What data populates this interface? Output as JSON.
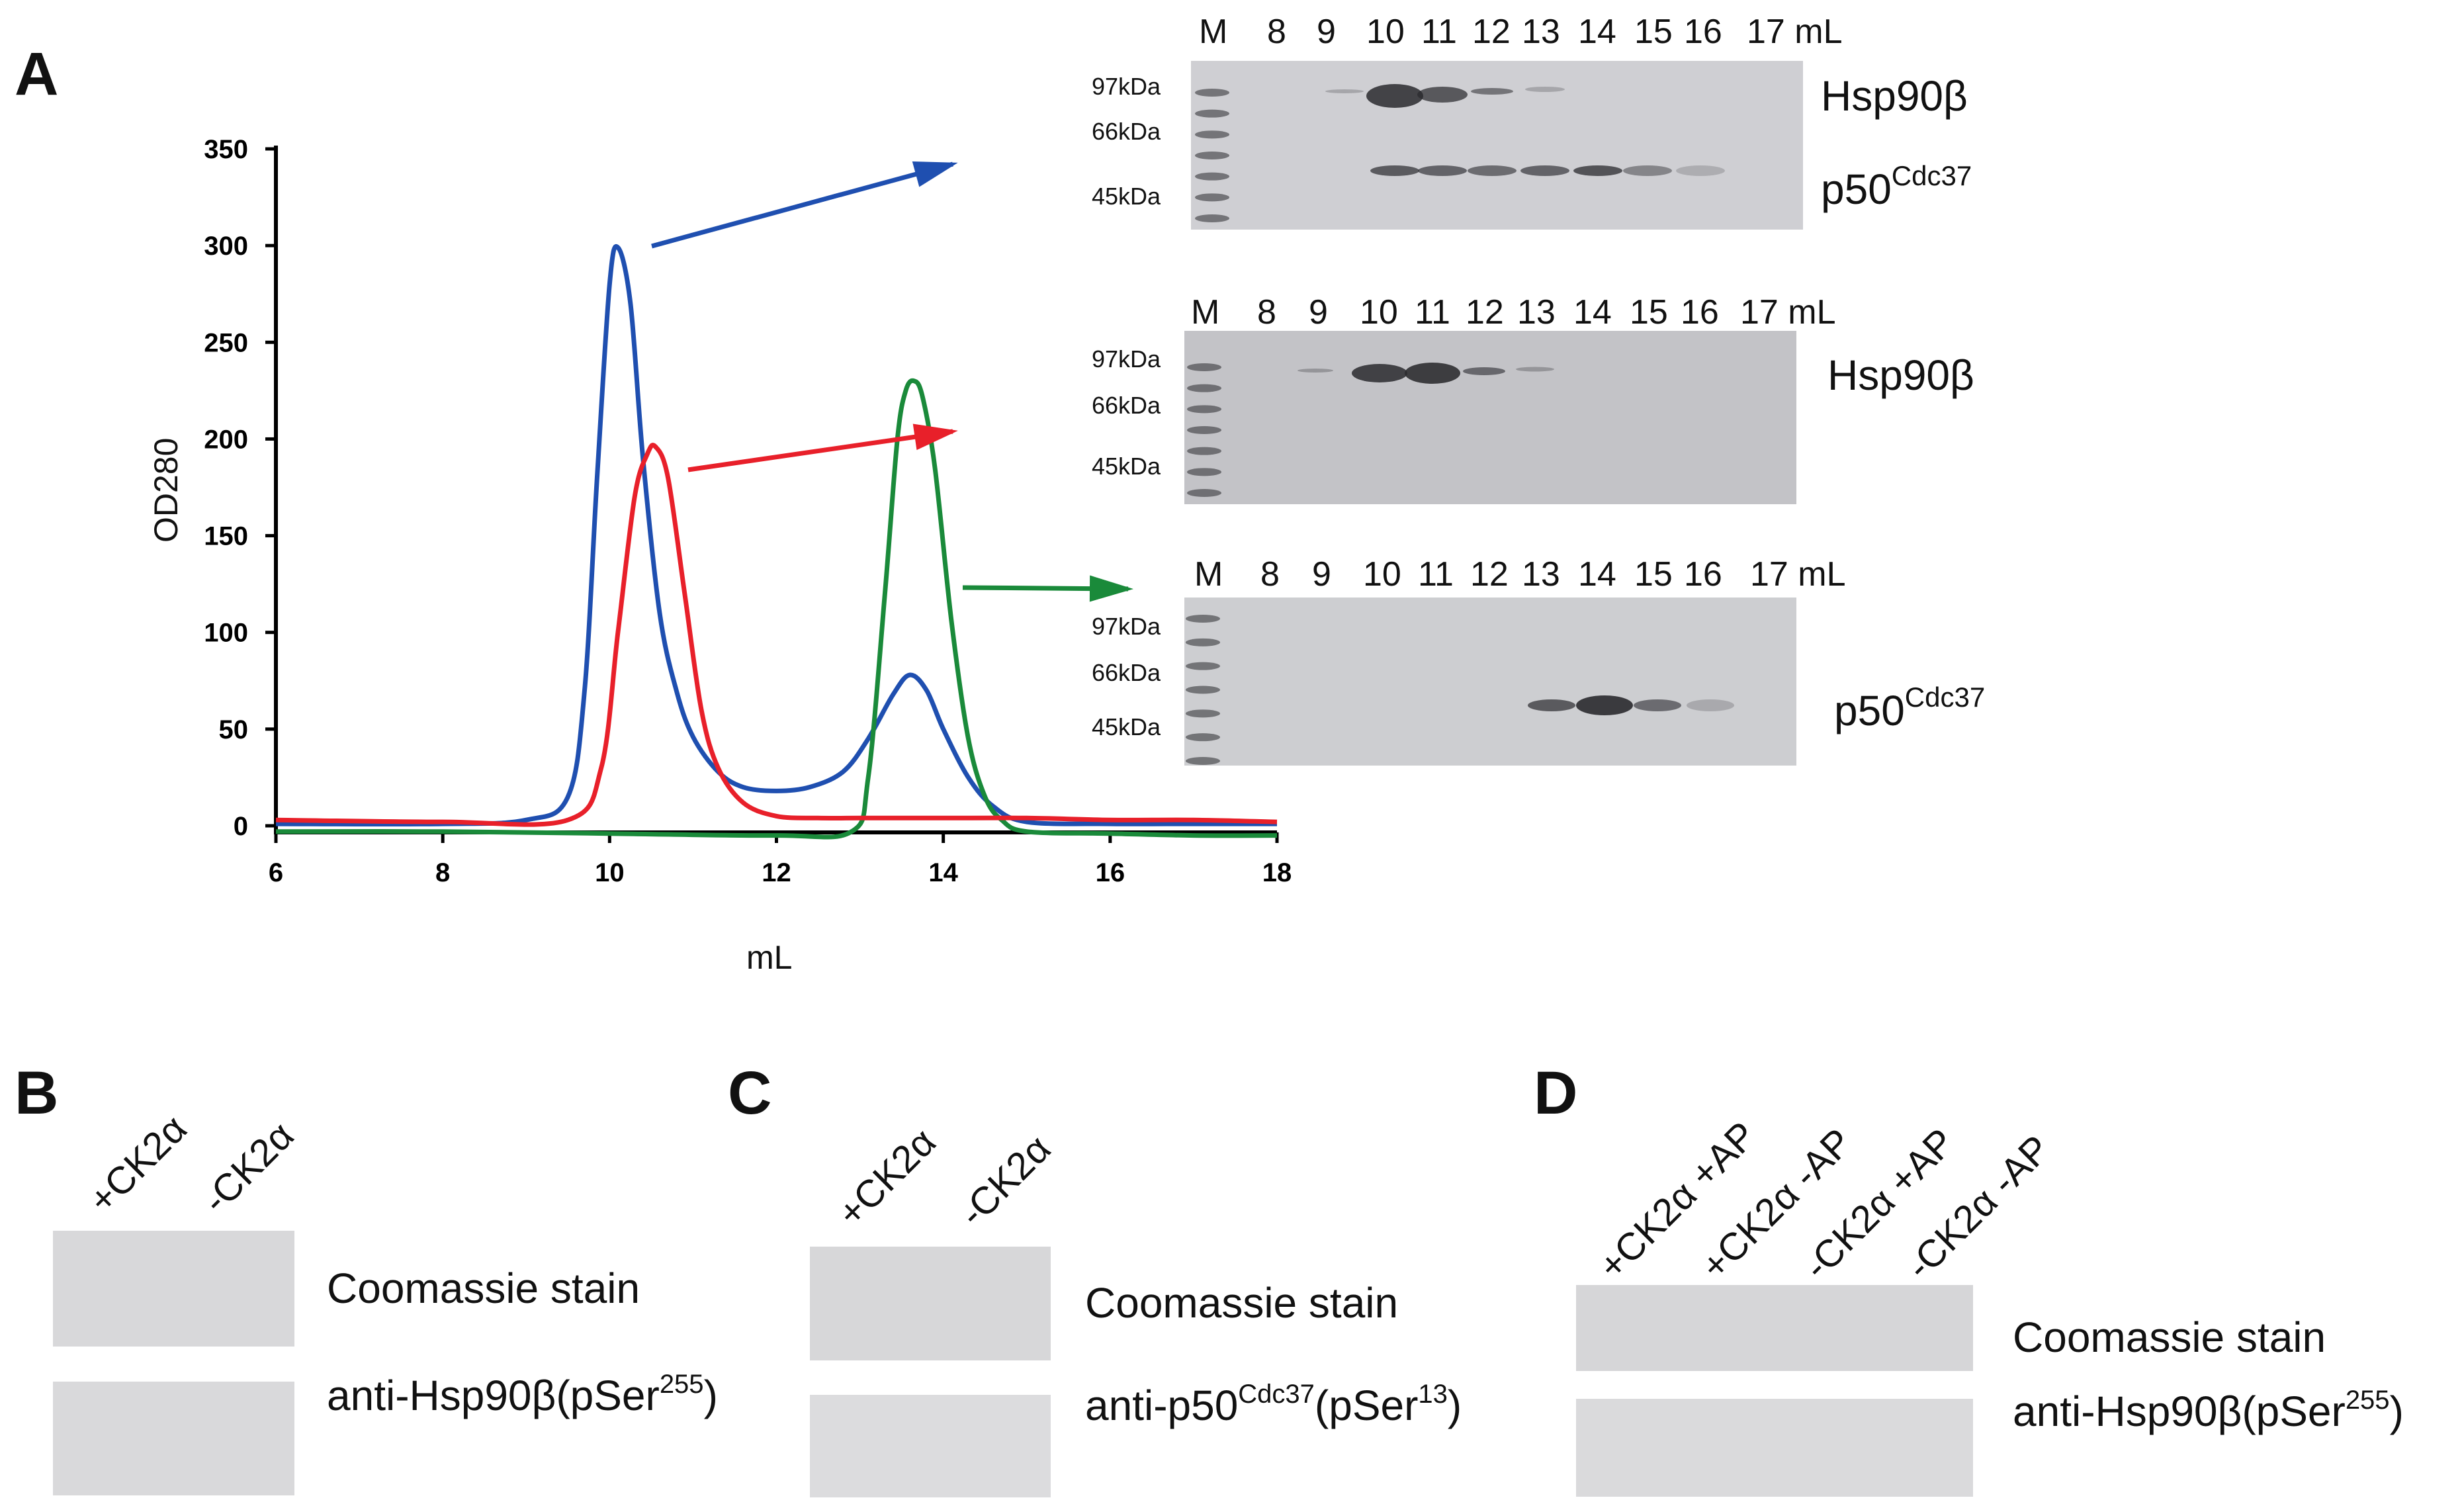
{
  "panels": {
    "A": "A",
    "B": "B",
    "C": "C",
    "D": "D"
  },
  "chart_data": {
    "type": "line",
    "xlabel": "mL",
    "ylabel": "OD280",
    "xlim": [
      6,
      18
    ],
    "ylim": [
      0,
      350
    ],
    "xticks": [
      6,
      8,
      10,
      12,
      14,
      16,
      18
    ],
    "yticks": [
      0,
      50,
      100,
      150,
      200,
      250,
      300,
      350
    ],
    "grid": false,
    "series": [
      {
        "color": "#1f4fb0",
        "x": [
          6,
          8,
          9,
          9.5,
          9.7,
          9.85,
          10.0,
          10.1,
          10.25,
          10.4,
          10.6,
          10.8,
          11.0,
          11.3,
          11.6,
          12.0,
          12.4,
          12.8,
          13.1,
          13.4,
          13.6,
          13.8,
          14.0,
          14.3,
          14.6,
          15.0,
          16,
          17,
          18
        ],
        "values": [
          1,
          1,
          3,
          15,
          70,
          180,
          280,
          299,
          270,
          190,
          110,
          70,
          46,
          28,
          20,
          18,
          20,
          28,
          45,
          68,
          78,
          70,
          50,
          25,
          10,
          2,
          1,
          1,
          1
        ]
      },
      {
        "color": "#e8202a",
        "x": [
          6,
          8,
          9.5,
          9.9,
          10.1,
          10.3,
          10.45,
          10.55,
          10.7,
          10.9,
          11.1,
          11.3,
          11.6,
          12.0,
          12.5,
          13,
          14,
          15,
          16,
          17,
          18
        ],
        "values": [
          3,
          2,
          3,
          30,
          100,
          170,
          192,
          196,
          180,
          120,
          60,
          30,
          12,
          5,
          4,
          4,
          4,
          4,
          3,
          3,
          2
        ]
      },
      {
        "color": "#1a8a3a",
        "x": [
          6,
          8,
          10,
          12,
          12.9,
          13.1,
          13.3,
          13.45,
          13.55,
          13.65,
          13.75,
          13.9,
          14.1,
          14.3,
          14.5,
          14.7,
          15.0,
          16,
          17,
          18
        ],
        "values": [
          -3,
          -3,
          -4,
          -5,
          -3,
          25,
          120,
          200,
          225,
          230,
          222,
          185,
          105,
          45,
          15,
          3,
          -3,
          -4,
          -5,
          -5
        ]
      }
    ]
  },
  "gels": [
    {
      "lanes": [
        "M",
        "8",
        "9",
        "10",
        "11",
        "12",
        "13",
        "14",
        "15",
        "16",
        "17 mL"
      ],
      "markers": [
        "97kDa",
        "66kDa",
        "45kDa"
      ],
      "proteins": [
        {
          "name": "Hsp90β",
          "sup": ""
        },
        {
          "name": "p50",
          "sup": "Cdc37"
        }
      ]
    },
    {
      "lanes": [
        "M",
        "8",
        "9",
        "10",
        "11",
        "12",
        "13",
        "14",
        "15",
        "16",
        "17 mL"
      ],
      "markers": [
        "97kDa",
        "66kDa",
        "45kDa"
      ],
      "proteins": [
        {
          "name": "Hsp90β",
          "sup": ""
        }
      ]
    },
    {
      "lanes": [
        "M",
        "8",
        "9",
        "10",
        "11",
        "12",
        "13",
        "14",
        "15",
        "16",
        "17 mL"
      ],
      "markers": [
        "97kDa",
        "66kDa",
        "45kDa"
      ],
      "proteins": [
        {
          "name": "p50",
          "sup": "Cdc37"
        }
      ]
    }
  ],
  "panel_b": {
    "lanes": [
      "+CK2α",
      "-CK2α"
    ],
    "row1": "Coomassie stain",
    "row2": {
      "pre": "anti-Hsp90β(pSer",
      "sup": "255",
      "post": ")"
    }
  },
  "panel_c": {
    "lanes": [
      "+CK2α",
      "-CK2α"
    ],
    "row1": "Coomassie stain",
    "row2": {
      "pre": "anti-p50",
      "sup1": "Cdc37",
      "mid": "(pSer",
      "sup2": "13",
      "post": ")"
    }
  },
  "panel_d": {
    "lanes": [
      "+CK2α +AP",
      "+CK2α -AP",
      "-CK2α +AP",
      "-CK2α -AP"
    ],
    "row1": "Coomassie stain",
    "row2": {
      "pre": "anti-Hsp90β(pSer",
      "sup": "255",
      "post": ")"
    }
  }
}
